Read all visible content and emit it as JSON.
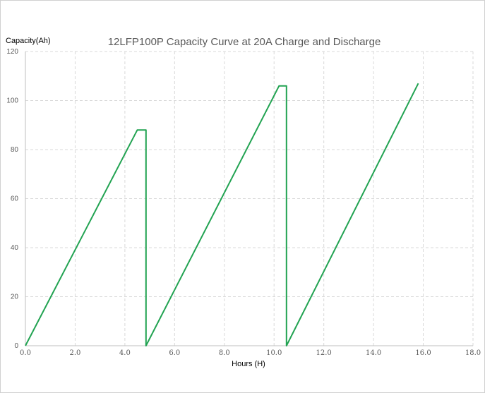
{
  "chart_data": {
    "type": "line",
    "title": "12LFP100P Capacity Curve at 20A Charge and Discharge",
    "xlabel": "Hours (H)",
    "ylabel": "Capacity(Ah)",
    "xlim": [
      0,
      18
    ],
    "ylim": [
      0,
      120
    ],
    "xticks": [
      "0.0",
      "2.0",
      "4.0",
      "6.0",
      "8.0",
      "10.0",
      "12.0",
      "14.0",
      "16.0",
      "18.0"
    ],
    "yticks": [
      "0",
      "20",
      "40",
      "60",
      "80",
      "100",
      "120"
    ],
    "grid": true,
    "legend": "none",
    "series": [
      {
        "color": "#22a352",
        "x": [
          0.0,
          4.5,
          4.85,
          4.85,
          10.2,
          10.5,
          10.5,
          15.8
        ],
        "y": [
          0,
          88,
          88,
          0,
          106,
          106,
          0,
          107
        ]
      }
    ]
  }
}
